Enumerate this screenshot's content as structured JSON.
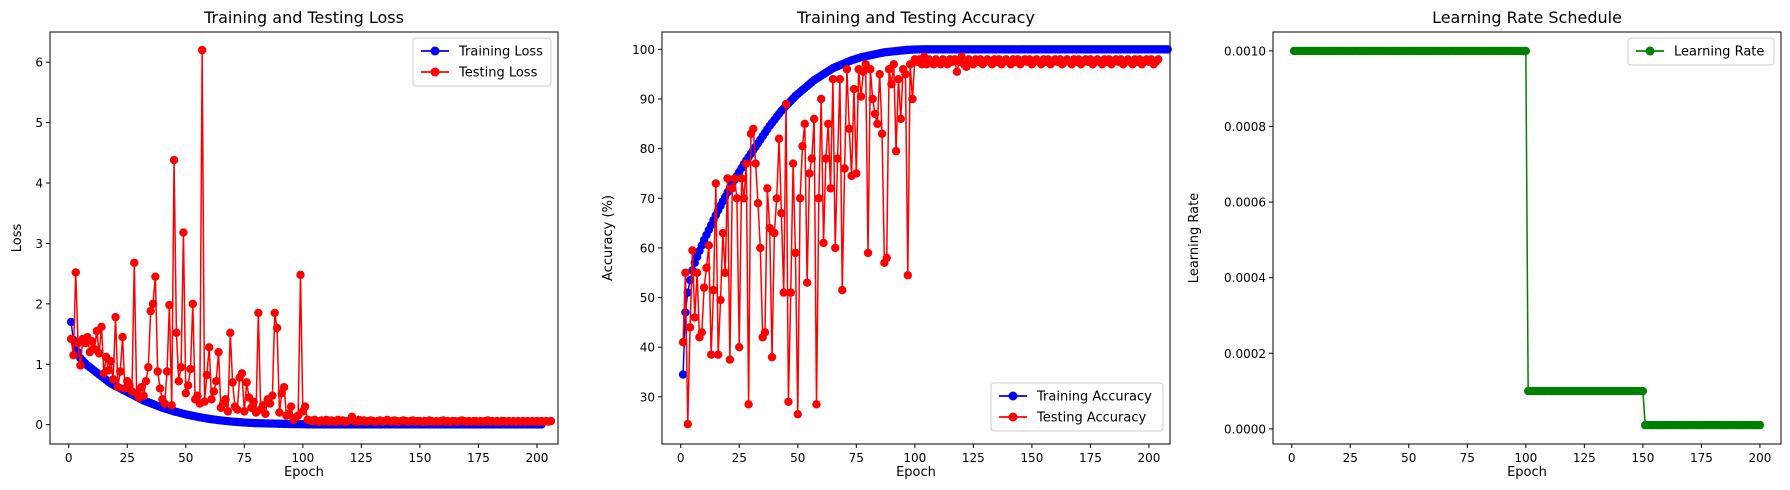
{
  "chart_data": [
    {
      "type": "line",
      "title": "Training and Testing Loss",
      "xlabel": "Epoch",
      "ylabel": "Loss",
      "xlim": [
        -8,
        209
      ],
      "ylim": [
        -0.32,
        6.5
      ],
      "xticks": [
        0,
        25,
        50,
        75,
        100,
        125,
        150,
        175,
        200
      ],
      "yticks": [
        0,
        1,
        2,
        3,
        4,
        5,
        6
      ],
      "legend_position": "upper right",
      "grid": false,
      "series": [
        {
          "name": "Training Loss",
          "color": "#0000ff",
          "x_start": 1,
          "x_step": 1,
          "values": [
            1.7,
            1.4,
            1.3,
            1.2,
            1.1,
            1.06,
            1.02,
            0.98,
            0.95,
            0.92,
            0.89,
            0.86,
            0.83,
            0.8,
            0.77,
            0.74,
            0.71,
            0.68,
            0.66,
            0.64,
            0.62,
            0.6,
            0.58,
            0.56,
            0.54,
            0.52,
            0.5,
            0.48,
            0.46,
            0.44,
            0.42,
            0.4,
            0.385,
            0.37,
            0.355,
            0.34,
            0.325,
            0.31,
            0.295,
            0.28,
            0.268,
            0.256,
            0.244,
            0.232,
            0.22,
            0.21,
            0.2,
            0.19,
            0.18,
            0.17,
            0.162,
            0.154,
            0.146,
            0.138,
            0.13,
            0.123,
            0.116,
            0.109,
            0.102,
            0.096,
            0.09,
            0.085,
            0.08,
            0.075,
            0.07,
            0.066,
            0.062,
            0.058,
            0.054,
            0.05,
            0.047,
            0.044,
            0.041,
            0.038,
            0.035,
            0.033,
            0.031,
            0.029,
            0.027,
            0.025,
            0.024,
            0.023,
            0.022,
            0.021,
            0.02,
            0.019,
            0.018,
            0.017,
            0.016,
            0.015,
            0.014,
            0.013,
            0.012,
            0.011,
            0.01,
            0.0095,
            0.009,
            0.0085,
            0.008,
            0.0075,
            0.006,
            0.005,
            0.005,
            0.005,
            0.005,
            0.005,
            0.005,
            0.005,
            0.005,
            0.005,
            0.004,
            0.004,
            0.004,
            0.004,
            0.004,
            0.004,
            0.004,
            0.004,
            0.004,
            0.004,
            0.004,
            0.004,
            0.004,
            0.004,
            0.004,
            0.004,
            0.004,
            0.004,
            0.004,
            0.004,
            0.004,
            0.004,
            0.004,
            0.004,
            0.004,
            0.004,
            0.004,
            0.004,
            0.004,
            0.004,
            0.004,
            0.004,
            0.004,
            0.004,
            0.004,
            0.004,
            0.004,
            0.004,
            0.004,
            0.004,
            0.004,
            0.004,
            0.004,
            0.004,
            0.004,
            0.004,
            0.004,
            0.004,
            0.004,
            0.004,
            0.004,
            0.004,
            0.004,
            0.004,
            0.004,
            0.004,
            0.004,
            0.004,
            0.004,
            0.004,
            0.004,
            0.004,
            0.004,
            0.004,
            0.004,
            0.004,
            0.004,
            0.004,
            0.004,
            0.004,
            0.004,
            0.004,
            0.004,
            0.004,
            0.004,
            0.004,
            0.004,
            0.004,
            0.004,
            0.004,
            0.004,
            0.004,
            0.004,
            0.004,
            0.004,
            0.004,
            0.004,
            0.004,
            0.004,
            0.004,
            0.004,
            0.004
          ]
        },
        {
          "name": "Testing Loss",
          "color": "#ff0000",
          "x_start": 1,
          "x_step": 1,
          "values": [
            1.42,
            1.15,
            2.52,
            1.35,
            0.98,
            1.42,
            1.35,
            1.45,
            1.2,
            1.38,
            1.25,
            1.55,
            1.18,
            1.62,
            0.85,
            1.12,
            0.9,
            1.05,
            0.75,
            1.78,
            0.62,
            0.88,
            1.45,
            0.6,
            0.72,
            0.65,
            0.55,
            2.68,
            0.52,
            0.45,
            0.62,
            0.48,
            0.72,
            0.95,
            1.88,
            2.0,
            2.45,
            0.88,
            0.6,
            0.42,
            0.35,
            0.88,
            1.98,
            0.32,
            4.38,
            1.52,
            0.72,
            0.95,
            3.18,
            0.52,
            0.65,
            0.92,
            2.0,
            0.42,
            0.48,
            0.35,
            6.2,
            0.38,
            0.82,
            1.28,
            0.42,
            0.55,
            0.72,
            1.2,
            0.28,
            0.35,
            0.42,
            0.22,
            1.52,
            0.7,
            0.3,
            0.25,
            0.78,
            0.85,
            0.22,
            0.7,
            0.45,
            0.28,
            0.38,
            0.2,
            1.85,
            0.25,
            0.32,
            0.18,
            0.42,
            0.35,
            0.48,
            1.85,
            1.6,
            0.2,
            0.52,
            0.62,
            0.15,
            0.18,
            0.3,
            0.08,
            0.12,
            0.15,
            2.48,
            0.22,
            0.3,
            0.08,
            0.07,
            0.06,
            0.08,
            0.06,
            0.05,
            0.07,
            0.06,
            0.08,
            0.05,
            0.07,
            0.06,
            0.05,
            0.08,
            0.06,
            0.07,
            0.05,
            0.06,
            0.07,
            0.13,
            0.06,
            0.05,
            0.08,
            0.06,
            0.07,
            0.05,
            0.06,
            0.07,
            0.06,
            0.05,
            0.06,
            0.07,
            0.05,
            0.06,
            0.08,
            0.06,
            0.05,
            0.07,
            0.06,
            0.05,
            0.06,
            0.07,
            0.06,
            0.05,
            0.06,
            0.07,
            0.05,
            0.06,
            0.06,
            0.05,
            0.06,
            0.05,
            0.07,
            0.06,
            0.05,
            0.06,
            0.05,
            0.06,
            0.07,
            0.05,
            0.06,
            0.05,
            0.06,
            0.06,
            0.05,
            0.06,
            0.07,
            0.06,
            0.05,
            0.06,
            0.05,
            0.06,
            0.06,
            0.05,
            0.06,
            0.05,
            0.06,
            0.07,
            0.05,
            0.06,
            0.05,
            0.06,
            0.05,
            0.06,
            0.06,
            0.05,
            0.06,
            0.05,
            0.06,
            0.05,
            0.06,
            0.05,
            0.06,
            0.05,
            0.06,
            0.05,
            0.06,
            0.05,
            0.06,
            0.05,
            0.06,
            0.05,
            0.06,
            0.05,
            0.06
          ]
        }
      ]
    },
    {
      "type": "line",
      "title": "Training and Testing Accuracy",
      "xlabel": "Epoch",
      "ylabel": "Accuracy (%)",
      "xlim": [
        -8,
        209
      ],
      "ylim": [
        20.5,
        103.5
      ],
      "xticks": [
        0,
        25,
        50,
        75,
        100,
        125,
        150,
        175,
        200
      ],
      "yticks": [
        30,
        40,
        50,
        60,
        70,
        80,
        90,
        100
      ],
      "legend_position": "lower right",
      "grid": false,
      "series": [
        {
          "name": "Training Accuracy",
          "color": "#0000ff",
          "x_start": 1,
          "x_step": 1,
          "values": [
            34.5,
            47,
            51,
            53.5,
            55.5,
            57,
            58.2,
            59.4,
            60.5,
            61.6,
            62.6,
            63.6,
            64.6,
            65.6,
            66.6,
            67.6,
            68.5,
            69.4,
            70.3,
            71.2,
            72.1,
            72.9,
            73.7,
            74.5,
            75.3,
            76.1,
            76.9,
            77.6,
            78.3,
            79,
            79.7,
            80.4,
            81.1,
            81.8,
            82.5,
            83.2,
            83.9,
            84.6,
            85.2,
            85.8,
            86.4,
            87,
            87.6,
            88.1,
            88.6,
            89.1,
            89.6,
            90.1,
            90.6,
            91,
            91.4,
            91.8,
            92.2,
            92.6,
            93,
            93.4,
            93.8,
            94.1,
            94.4,
            94.7,
            95,
            95.3,
            95.6,
            95.9,
            96.2,
            96.4,
            96.6,
            96.8,
            97,
            97.2,
            97.4,
            97.6,
            97.8,
            97.95,
            98.1,
            98.25,
            98.4,
            98.5,
            98.6,
            98.7,
            98.8,
            98.9,
            99,
            99.1,
            99.2,
            99.3,
            99.4,
            99.45,
            99.5,
            99.55,
            99.6,
            99.65,
            99.7,
            99.75,
            99.8,
            99.85,
            99.9,
            99.92,
            99.95,
            99.97,
            99.98,
            99.99,
            100,
            100,
            100,
            100,
            100,
            100,
            100,
            100,
            100,
            100,
            100,
            100,
            100,
            100,
            100,
            100,
            100,
            100,
            100,
            100,
            100,
            100,
            100,
            100,
            100,
            100,
            100,
            100,
            100,
            100,
            100,
            100,
            100,
            100,
            100,
            100,
            100,
            100,
            100,
            100,
            100,
            100,
            100,
            100,
            100,
            100,
            100,
            100,
            100,
            100,
            100,
            100,
            100,
            100,
            100,
            100,
            100,
            100,
            100,
            100,
            100,
            100,
            100,
            100,
            100,
            100,
            100,
            100,
            100,
            100,
            100,
            100,
            100,
            100,
            100,
            100,
            100,
            100,
            100,
            100,
            100,
            100,
            100,
            100,
            100,
            100,
            100,
            100,
            100,
            100,
            100,
            100,
            100,
            100,
            100,
            100,
            100,
            100,
            100,
            100,
            100,
            100,
            100,
            100,
            100,
            100
          ]
        },
        {
          "name": "Testing Accuracy",
          "color": "#ff0000",
          "x_start": 1,
          "x_step": 1,
          "values": [
            41,
            55,
            24.5,
            44,
            59.5,
            46,
            55,
            42,
            43,
            52,
            56,
            60.5,
            38.5,
            51.5,
            73,
            38.5,
            49.5,
            63,
            55,
            74,
            37.5,
            72,
            74,
            70,
            40,
            74,
            70,
            77,
            28.5,
            83,
            84,
            77,
            69,
            60,
            42,
            43,
            72,
            64,
            38,
            63,
            70,
            82,
            67,
            51,
            89,
            29,
            51,
            77,
            59,
            26.5,
            70,
            80.5,
            85,
            53,
            75,
            78,
            86,
            28.5,
            70,
            90,
            61,
            78,
            85,
            72,
            94,
            60,
            78,
            94,
            51.5,
            76,
            96,
            84,
            74.5,
            92,
            75,
            96,
            90.5,
            95.5,
            97,
            59,
            96,
            90,
            87,
            85,
            95,
            83,
            57,
            58,
            96,
            93,
            97,
            79.5,
            94,
            86,
            96,
            95,
            54.5,
            97,
            90,
            98,
            97.5,
            98,
            97,
            98.5,
            97,
            98,
            97.5,
            97,
            98,
            97.5,
            97,
            98,
            97.5,
            97,
            98,
            97.5,
            98,
            95.5,
            97.5,
            98.5,
            97,
            96.5,
            98,
            97.5,
            97,
            98,
            97.5,
            98,
            97,
            97.5,
            98,
            97.5,
            97,
            98,
            97.5,
            98,
            97,
            97.5,
            98,
            97.5,
            97,
            98,
            97.5,
            98,
            97,
            97.5,
            98,
            97.5,
            98,
            97,
            97.5,
            98,
            97.5,
            97,
            98,
            97.5,
            98,
            97,
            97.5,
            98,
            97.5,
            98,
            97,
            97.5,
            98,
            97.5,
            97,
            98,
            97.5,
            98,
            97,
            97.5,
            98,
            97.5,
            98,
            97,
            97.5,
            98,
            97.5,
            97,
            98,
            97.5,
            98,
            97,
            97.5,
            98,
            97.5,
            98,
            97,
            97.5,
            98,
            97.5,
            97,
            98,
            97.5,
            98,
            97,
            97.5,
            98,
            97.5,
            98,
            97,
            97.5,
            98
          ]
        }
      ]
    },
    {
      "type": "line",
      "title": "Learning Rate Schedule",
      "xlabel": "Epoch",
      "ylabel": "Learning Rate",
      "xlim": [
        -8,
        209
      ],
      "ylim": [
        -4e-05,
        0.00105
      ],
      "xticks": [
        0,
        25,
        50,
        75,
        100,
        125,
        150,
        175,
        200
      ],
      "yticks": [
        0.0,
        0.0002,
        0.0004,
        0.0006,
        0.0008,
        0.001
      ],
      "ytick_labels": [
        "0.0000",
        "0.0002",
        "0.0004",
        "0.0006",
        "0.0008",
        "0.0010"
      ],
      "legend_position": "upper right",
      "grid": false,
      "series": [
        {
          "name": "Learning Rate",
          "color": "#008000",
          "piecewise": [
            {
              "from": 1,
              "to": 100,
              "value": 0.001
            },
            {
              "from": 101,
              "to": 150,
              "value": 0.0001
            },
            {
              "from": 151,
              "to": 200,
              "value": 1e-05
            }
          ]
        }
      ]
    }
  ]
}
